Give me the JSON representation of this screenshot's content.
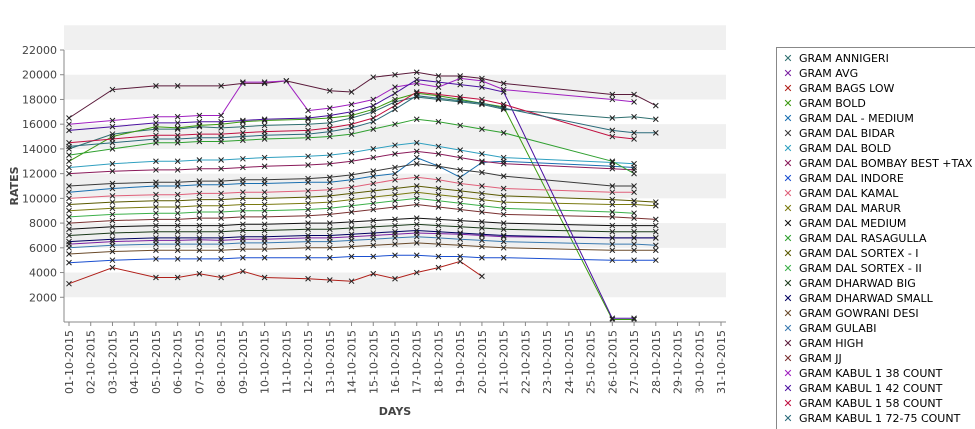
{
  "chart_data": {
    "type": "line",
    "xlabel": "DAYS",
    "ylabel": "RATES",
    "ylim": [
      0,
      22000
    ],
    "yticks": [
      2000,
      4000,
      6000,
      8000,
      10000,
      12000,
      14000,
      16000,
      18000,
      20000,
      22000
    ],
    "categories": [
      "01-10-2015",
      "02-10-2015",
      "03-10-2015",
      "04-10-2015",
      "05-10-2015",
      "06-10-2015",
      "07-10-2015",
      "08-10-2015",
      "09-10-2015",
      "10-10-2015",
      "11-10-2015",
      "12-10-2015",
      "13-10-2015",
      "14-10-2015",
      "15-10-2015",
      "16-10-2015",
      "17-10-2015",
      "18-10-2015",
      "19-10-2015",
      "20-10-2015",
      "21-10-2015",
      "22-10-2015",
      "23-10-2015",
      "24-10-2015",
      "25-10-2015",
      "26-10-2015",
      "27-10-2015",
      "28-10-2015",
      "29-10-2015",
      "30-10-2015",
      "31-10-2015"
    ],
    "grid": "alternating horizontal bands",
    "legend_position": "right",
    "series": [
      {
        "name": "GRAM ANNIGERI",
        "color": "#2f6f6f",
        "values": [
          14000,
          null,
          15200,
          null,
          15600,
          15600,
          15800,
          15700,
          15800,
          15900,
          null,
          16000,
          16100,
          16500,
          17000,
          17800,
          18200,
          18000,
          17800,
          17600,
          17200,
          null,
          null,
          null,
          null,
          16500,
          16600,
          16400,
          null,
          null,
          null
        ]
      },
      {
        "name": "GRAM AVG",
        "color": "#7a1fa2",
        "values": [
          6300,
          null,
          6500,
          null,
          6600,
          6600,
          6650,
          6600,
          6700,
          6700,
          null,
          6800,
          6800,
          6900,
          7000,
          7100,
          7200,
          7150,
          7100,
          7000,
          6900,
          null,
          null,
          null,
          null,
          6800,
          6800,
          6800,
          null,
          null,
          null
        ]
      },
      {
        "name": "GRAM BAGS LOW",
        "color": "#b0201a",
        "values": [
          3100,
          null,
          4400,
          null,
          3600,
          3600,
          3900,
          3600,
          4100,
          3600,
          null,
          3500,
          3400,
          3300,
          3900,
          3500,
          4000,
          4400,
          4900,
          3700,
          null,
          null,
          null,
          null,
          null,
          null,
          null,
          null,
          null,
          null,
          null
        ]
      },
      {
        "name": "GRAM BOLD",
        "color": "#3c9a10",
        "values": [
          13000,
          null,
          15000,
          null,
          15800,
          15700,
          15900,
          16000,
          16200,
          16300,
          null,
          16400,
          16500,
          16700,
          17200,
          18000,
          18500,
          18300,
          18000,
          17700,
          17400,
          null,
          null,
          null,
          null,
          200,
          200,
          null,
          null,
          null,
          null
        ]
      },
      {
        "name": "GRAM DAL - MEDIUM",
        "color": "#1a6fb0",
        "values": [
          10500,
          null,
          10800,
          null,
          11000,
          11000,
          11100,
          11100,
          11200,
          11200,
          null,
          11300,
          11300,
          11500,
          11800,
          12000,
          13300,
          12600,
          11700,
          12900,
          13000,
          null,
          null,
          null,
          null,
          12600,
          12500,
          null,
          null,
          null,
          null
        ]
      },
      {
        "name": "GRAM DAL BIDAR",
        "color": "#3a3a3a",
        "values": [
          11000,
          null,
          11200,
          null,
          11300,
          11300,
          11400,
          11400,
          11500,
          11500,
          null,
          11600,
          11700,
          11900,
          12200,
          12500,
          12800,
          12600,
          12300,
          12100,
          11800,
          null,
          null,
          null,
          null,
          11000,
          11000,
          null,
          null,
          null,
          null
        ]
      },
      {
        "name": "GRAM DAL BOLD",
        "color": "#30a0c0",
        "values": [
          12500,
          null,
          12800,
          null,
          13000,
          13000,
          13100,
          13100,
          13200,
          13300,
          null,
          13400,
          13500,
          13700,
          14000,
          14300,
          14500,
          14200,
          13900,
          13600,
          13300,
          null,
          null,
          null,
          null,
          12900,
          12800,
          null,
          null,
          null,
          null
        ]
      },
      {
        "name": "GRAM DAL BOMBAY BEST +TAX",
        "color": "#8a1a5a",
        "values": [
          12000,
          null,
          12200,
          null,
          12300,
          12300,
          12400,
          12400,
          12500,
          12600,
          null,
          12700,
          12800,
          13000,
          13300,
          13600,
          13800,
          13600,
          13300,
          13000,
          12800,
          null,
          null,
          null,
          null,
          12400,
          12300,
          null,
          null,
          null,
          null
        ]
      },
      {
        "name": "GRAM DAL INDORE",
        "color": "#1a4fd0",
        "values": [
          4800,
          null,
          5000,
          null,
          5100,
          5100,
          5100,
          5100,
          5200,
          5200,
          null,
          5200,
          5200,
          5300,
          5300,
          5400,
          5400,
          5300,
          5300,
          5200,
          5200,
          null,
          null,
          null,
          null,
          5000,
          5000,
          5000,
          null,
          null,
          null
        ]
      },
      {
        "name": "GRAM DAL KAMAL",
        "color": "#e0607a",
        "values": [
          10000,
          null,
          10200,
          null,
          10300,
          10300,
          10400,
          10400,
          10500,
          10500,
          null,
          10600,
          10700,
          10900,
          11200,
          11500,
          11700,
          11500,
          11200,
          11000,
          10800,
          null,
          null,
          null,
          null,
          10500,
          10500,
          null,
          null,
          null,
          null
        ]
      },
      {
        "name": "GRAM DAL MARUR",
        "color": "#7a7a10",
        "values": [
          9000,
          null,
          9200,
          null,
          9300,
          9300,
          9400,
          9400,
          9500,
          9500,
          null,
          9600,
          9700,
          9900,
          10100,
          10300,
          10500,
          10300,
          10100,
          9900,
          9700,
          null,
          null,
          null,
          null,
          9500,
          9500,
          9400,
          null,
          null,
          null
        ]
      },
      {
        "name": "GRAM DAL MEDIUM",
        "color": "#101010",
        "values": [
          7500,
          null,
          7700,
          null,
          7800,
          7800,
          7800,
          7800,
          7900,
          7900,
          null,
          8000,
          8000,
          8100,
          8200,
          8300,
          8400,
          8300,
          8200,
          8100,
          8000,
          null,
          null,
          null,
          null,
          7800,
          7800,
          7800,
          null,
          null,
          null
        ]
      },
      {
        "name": "GRAM DAL RASAGULLA",
        "color": "#30a030",
        "values": [
          13500,
          null,
          14000,
          null,
          14500,
          14500,
          14600,
          14600,
          14700,
          14800,
          null,
          14900,
          15000,
          15200,
          15600,
          16000,
          16400,
          16200,
          15900,
          15600,
          15300,
          null,
          null,
          null,
          null,
          13000,
          12000,
          null,
          null,
          null,
          null
        ]
      },
      {
        "name": "GRAM DAL SORTEX  - I",
        "color": "#5a5a00",
        "values": [
          9500,
          null,
          9700,
          null,
          9800,
          9800,
          9900,
          9900,
          10000,
          10000,
          null,
          10100,
          10200,
          10400,
          10600,
          10800,
          11000,
          10800,
          10600,
          10400,
          10200,
          null,
          null,
          null,
          null,
          9900,
          9800,
          9700,
          null,
          null,
          null
        ]
      },
      {
        "name": "GRAM DAL SORTEX - II",
        "color": "#3cb04a",
        "values": [
          8500,
          null,
          8700,
          null,
          8800,
          8800,
          8900,
          8900,
          9000,
          9000,
          null,
          9100,
          9200,
          9400,
          9600,
          9800,
          10000,
          9800,
          9600,
          9400,
          9200,
          null,
          null,
          null,
          null,
          8900,
          8800,
          null,
          null,
          null,
          null
        ]
      },
      {
        "name": "GRAM DHARWAD BIG",
        "color": "#1a3a1a",
        "values": [
          7000,
          null,
          7200,
          null,
          7300,
          7300,
          7300,
          7300,
          7400,
          7400,
          null,
          7500,
          7500,
          7600,
          7700,
          7800,
          7900,
          7800,
          7700,
          7600,
          7500,
          null,
          null,
          null,
          null,
          7300,
          7300,
          7300,
          null,
          null,
          null
        ]
      },
      {
        "name": "GRAM DHARWAD SMALL",
        "color": "#000060",
        "values": [
          6500,
          null,
          6700,
          null,
          6800,
          6800,
          6800,
          6800,
          6900,
          6900,
          null,
          7000,
          7000,
          7100,
          7200,
          7300,
          7400,
          7300,
          7200,
          7100,
          7000,
          null,
          null,
          null,
          null,
          6800,
          6800,
          6800,
          null,
          null,
          null
        ]
      },
      {
        "name": "GRAM GOWRANI DESI",
        "color": "#6a4a2a",
        "values": [
          5500,
          null,
          5700,
          null,
          5800,
          5800,
          5800,
          5800,
          5900,
          5900,
          null,
          6000,
          6000,
          6100,
          6200,
          6300,
          6400,
          6300,
          6200,
          6100,
          6000,
          null,
          null,
          null,
          null,
          5800,
          5800,
          5800,
          null,
          null,
          null
        ]
      },
      {
        "name": "GRAM GULABI",
        "color": "#3a7ab0",
        "values": [
          6000,
          null,
          6200,
          null,
          6300,
          6300,
          6300,
          6300,
          6400,
          6400,
          null,
          6500,
          6500,
          6600,
          6700,
          6800,
          6900,
          6800,
          6700,
          6600,
          6500,
          null,
          null,
          null,
          null,
          6300,
          6300,
          6200,
          null,
          null,
          null
        ]
      },
      {
        "name": "GRAM HIGH",
        "color": "#5a1a3a",
        "values": [
          16500,
          null,
          18800,
          null,
          19100,
          19100,
          null,
          19100,
          19300,
          19300,
          19500,
          null,
          18700,
          18600,
          19800,
          20000,
          20200,
          19900,
          19900,
          19700,
          19300,
          null,
          null,
          null,
          null,
          18400,
          18400,
          17500,
          null,
          null,
          null
        ]
      },
      {
        "name": "GRAM JJ",
        "color": "#7a3030",
        "values": [
          8000,
          null,
          8200,
          null,
          8300,
          8300,
          8400,
          8400,
          8500,
          8500,
          null,
          8600,
          8700,
          8900,
          9100,
          9300,
          9500,
          9300,
          9100,
          8900,
          8700,
          null,
          null,
          null,
          null,
          8500,
          8400,
          8300,
          null,
          null,
          null
        ]
      },
      {
        "name": "GRAM KABUL 1 38 COUNT",
        "color": "#a020c0",
        "values": [
          16000,
          null,
          16300,
          null,
          16600,
          16600,
          16700,
          16700,
          19400,
          19400,
          19500,
          17100,
          17300,
          17600,
          18000,
          19000,
          19300,
          19000,
          19700,
          19500,
          18800,
          null,
          null,
          null,
          null,
          18000,
          17800,
          null,
          null,
          null,
          null
        ]
      },
      {
        "name": "GRAM KABUL 1 42 COUNT",
        "color": "#4a10a0",
        "values": [
          15500,
          null,
          15800,
          null,
          16100,
          16100,
          16200,
          16200,
          16300,
          16400,
          null,
          16500,
          16700,
          17000,
          17500,
          18500,
          19600,
          19400,
          19200,
          19000,
          18600,
          null,
          null,
          null,
          null,
          300,
          300,
          null,
          null,
          null,
          null
        ]
      },
      {
        "name": "GRAM KABUL 1 58 COUNT",
        "color": "#c01040",
        "values": [
          14500,
          null,
          14800,
          null,
          15100,
          15100,
          15200,
          15200,
          15300,
          15400,
          null,
          15500,
          15700,
          16000,
          16500,
          17500,
          18600,
          18400,
          18200,
          18000,
          17600,
          null,
          null,
          null,
          null,
          15000,
          14800,
          null,
          null,
          null,
          null
        ]
      },
      {
        "name": "GRAM KABUL 1 72-75 COUNT",
        "color": "#2a6a7a",
        "values": [
          14200,
          null,
          14500,
          null,
          14800,
          14800,
          14900,
          14900,
          15000,
          15100,
          null,
          15200,
          15400,
          15700,
          16200,
          17200,
          18300,
          18100,
          17900,
          17700,
          17300,
          null,
          null,
          null,
          null,
          15500,
          15300,
          15300,
          null,
          null,
          null
        ]
      }
    ]
  }
}
